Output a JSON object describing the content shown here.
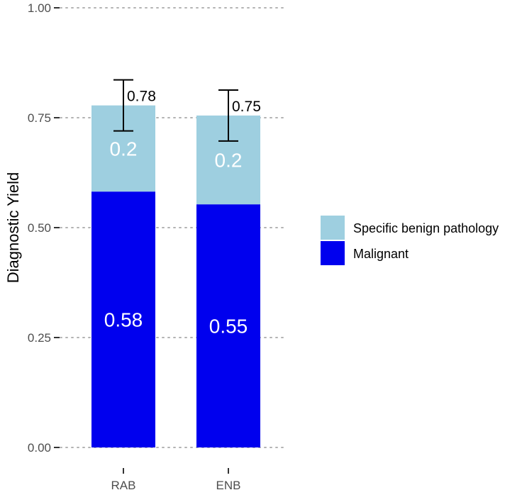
{
  "chart_data": {
    "type": "bar",
    "stacked": true,
    "categories": [
      "RAB",
      "ENB"
    ],
    "series": [
      {
        "name": "Malignant",
        "color": "#0000ee",
        "values": [
          0.582,
          0.553
        ],
        "labels": [
          "0.58",
          "0.55"
        ]
      },
      {
        "name": "Specific benign pathology",
        "color": "#9ecfe0",
        "values": [
          0.196,
          0.202
        ],
        "labels": [
          "0.2",
          "0.2"
        ]
      }
    ],
    "totals": {
      "values": [
        0.778,
        0.755
      ],
      "labels": [
        "0.78",
        "0.75"
      ]
    },
    "error_bars": {
      "low": [
        0.72,
        0.697
      ],
      "high": [
        0.836,
        0.813
      ]
    },
    "ylabel": "Diagnostic Yield",
    "xlabel": "",
    "ylim": [
      0,
      1
    ],
    "yticks": [
      0,
      0.25,
      0.5,
      0.75,
      1
    ],
    "ytick_labels": [
      "0.00",
      "0.25",
      "0.50",
      "0.75",
      "1.00"
    ],
    "grid": "horizontal-dotted",
    "legend_position": "right",
    "legend_order": [
      "Specific benign pathology",
      "Malignant"
    ]
  }
}
